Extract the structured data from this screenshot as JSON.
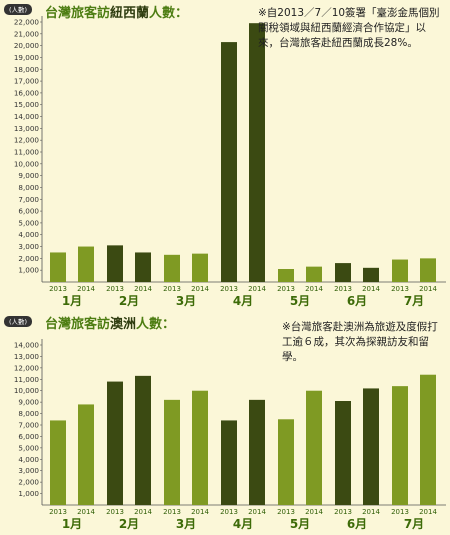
{
  "colors": {
    "background": "#fbf7d8",
    "bar_2013": "#7f9a23",
    "bar_2014": "#3b4a12",
    "title": "#4d7d12",
    "month_label": "#3d6b08",
    "year_label": "#2f5e06",
    "unit_badge": "#333333"
  },
  "chart_data": [
    {
      "type": "bar",
      "title_parts": [
        "台灣旅客訪",
        "紐西蘭",
        "人數："
      ],
      "unit_label": "(人數)",
      "note": "※自2013／7／10簽署「臺澎金馬個別關稅領域與紐西蘭經濟合作協定」以來，台灣旅客赴紐西蘭成長28%。",
      "ylim": [
        0,
        22000
      ],
      "yticks": [
        1000,
        2000,
        3000,
        4000,
        5000,
        6000,
        7000,
        8000,
        9000,
        10000,
        11000,
        12000,
        13000,
        14000,
        15000,
        16000,
        17000,
        18000,
        19000,
        20000,
        21000,
        22000
      ],
      "ytick_labels": [
        "1,000",
        "2,000",
        "3,000",
        "4,000",
        "5,000",
        "6,000",
        "7,000",
        "8,000",
        "9,000",
        "10,000",
        "11,000",
        "12,000",
        "13,000",
        "14,000",
        "15,000",
        "16,000",
        "17,000",
        "18,000",
        "19,000",
        "20,000",
        "21,000",
        "22,000"
      ],
      "categories": [
        "1月",
        "2月",
        "3月",
        "4月",
        "5月",
        "6月",
        "7月"
      ],
      "series": [
        {
          "name": "2013",
          "color": "#7f9a23",
          "values": [
            2500,
            3100,
            2300,
            20300,
            1100,
            1600,
            1900
          ]
        },
        {
          "name": "2014",
          "color": "#3b4a12",
          "values": [
            3000,
            2500,
            2400,
            21900,
            1300,
            1200,
            2000
          ]
        }
      ],
      "highlight_dark_months": [
        "2月",
        "4月",
        "6月"
      ]
    },
    {
      "type": "bar",
      "title_parts": [
        "台灣旅客訪",
        "澳洲",
        "人數："
      ],
      "unit_label": "(人數)",
      "note": "※台灣旅客赴澳洲為旅遊及度假打工逾６成，其次為探親訪友和留學。",
      "ylim": [
        0,
        14000
      ],
      "yticks": [
        1000,
        2000,
        3000,
        4000,
        5000,
        6000,
        7000,
        8000,
        9000,
        10000,
        11000,
        12000,
        13000,
        14000
      ],
      "ytick_labels": [
        "1,000",
        "2,000",
        "3,000",
        "4,000",
        "5,000",
        "6,000",
        "7,000",
        "8,000",
        "9,000",
        "10,000",
        "11,000",
        "12,000",
        "13,000",
        "14,000"
      ],
      "categories": [
        "1月",
        "2月",
        "3月",
        "4月",
        "5月",
        "6月",
        "7月"
      ],
      "series": [
        {
          "name": "2013",
          "color": "#7f9a23",
          "values": [
            7400,
            10800,
            9200,
            7400,
            7500,
            9100,
            10400
          ]
        },
        {
          "name": "2014",
          "color": "#3b4a12",
          "values": [
            8800,
            11300,
            10000,
            9200,
            10000,
            10200,
            11400
          ]
        }
      ],
      "highlight_dark_months": [
        "2月",
        "4月",
        "6月"
      ]
    }
  ]
}
